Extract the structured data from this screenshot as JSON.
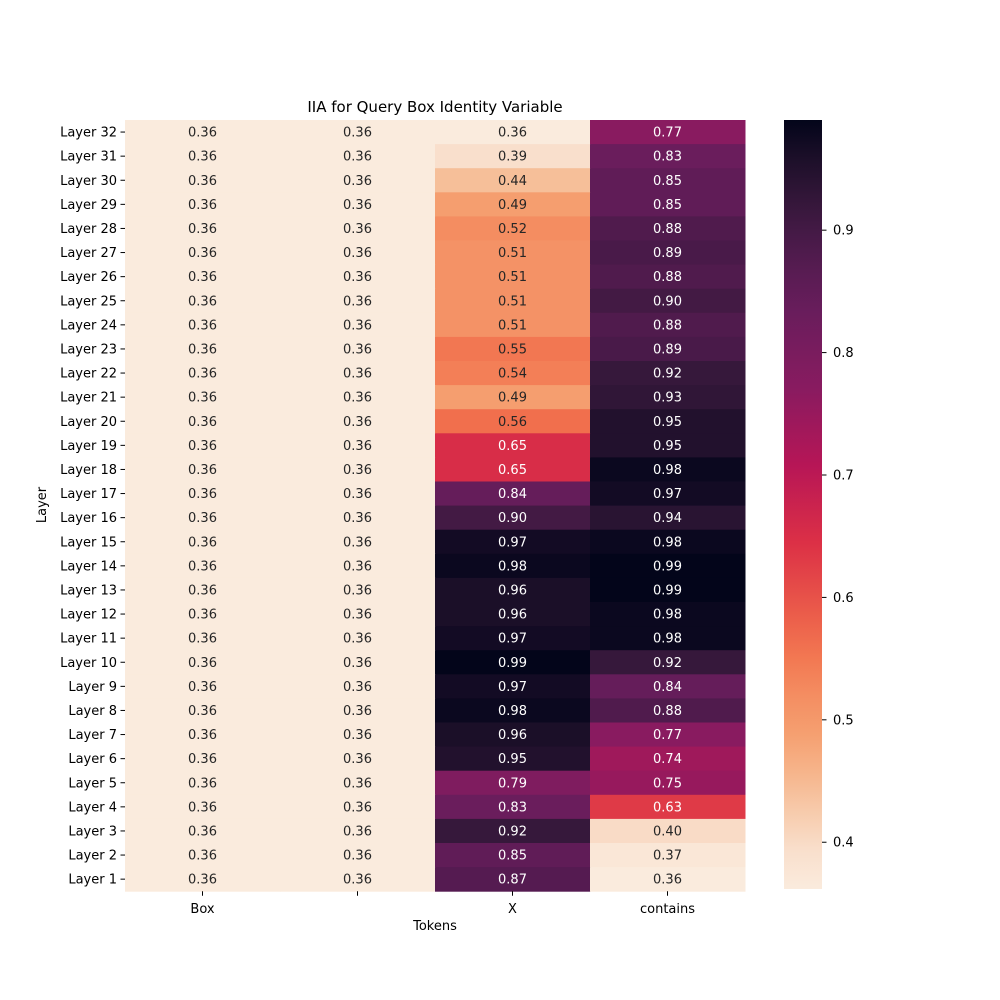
{
  "chart_data": {
    "type": "heatmap",
    "title": "IIA for Query Box Identity Variable",
    "xlabel": "Tokens",
    "ylabel": "Layer",
    "x_categories": [
      "Box",
      "",
      "X",
      "contains"
    ],
    "y_categories": [
      "Layer 32",
      "Layer 31",
      "Layer 30",
      "Layer 29",
      "Layer 28",
      "Layer 27",
      "Layer 26",
      "Layer 25",
      "Layer 24",
      "Layer 23",
      "Layer 22",
      "Layer 21",
      "Layer 20",
      "Layer 19",
      "Layer 18",
      "Layer 17",
      "Layer 16",
      "Layer 15",
      "Layer 14",
      "Layer 13",
      "Layer 12",
      "Layer 11",
      "Layer 10",
      "Layer 9",
      "Layer 8",
      "Layer 7",
      "Layer 6",
      "Layer 5",
      "Layer 4",
      "Layer 3",
      "Layer 2",
      "Layer 1"
    ],
    "values": [
      [
        0.36,
        0.36,
        0.36,
        0.77
      ],
      [
        0.36,
        0.36,
        0.39,
        0.83
      ],
      [
        0.36,
        0.36,
        0.44,
        0.85
      ],
      [
        0.36,
        0.36,
        0.49,
        0.85
      ],
      [
        0.36,
        0.36,
        0.52,
        0.88
      ],
      [
        0.36,
        0.36,
        0.51,
        0.89
      ],
      [
        0.36,
        0.36,
        0.51,
        0.88
      ],
      [
        0.36,
        0.36,
        0.51,
        0.9
      ],
      [
        0.36,
        0.36,
        0.51,
        0.88
      ],
      [
        0.36,
        0.36,
        0.55,
        0.89
      ],
      [
        0.36,
        0.36,
        0.54,
        0.92
      ],
      [
        0.36,
        0.36,
        0.49,
        0.93
      ],
      [
        0.36,
        0.36,
        0.56,
        0.95
      ],
      [
        0.36,
        0.36,
        0.65,
        0.95
      ],
      [
        0.36,
        0.36,
        0.65,
        0.98
      ],
      [
        0.36,
        0.36,
        0.84,
        0.97
      ],
      [
        0.36,
        0.36,
        0.9,
        0.94
      ],
      [
        0.36,
        0.36,
        0.97,
        0.98
      ],
      [
        0.36,
        0.36,
        0.98,
        0.99
      ],
      [
        0.36,
        0.36,
        0.96,
        0.99
      ],
      [
        0.36,
        0.36,
        0.96,
        0.98
      ],
      [
        0.36,
        0.36,
        0.97,
        0.98
      ],
      [
        0.36,
        0.36,
        0.99,
        0.92
      ],
      [
        0.36,
        0.36,
        0.97,
        0.84
      ],
      [
        0.36,
        0.36,
        0.98,
        0.88
      ],
      [
        0.36,
        0.36,
        0.96,
        0.77
      ],
      [
        0.36,
        0.36,
        0.95,
        0.74
      ],
      [
        0.36,
        0.36,
        0.79,
        0.75
      ],
      [
        0.36,
        0.36,
        0.83,
        0.63
      ],
      [
        0.36,
        0.36,
        0.92,
        0.4
      ],
      [
        0.36,
        0.36,
        0.85,
        0.37
      ],
      [
        0.36,
        0.36,
        0.87,
        0.36
      ]
    ],
    "value_range": [
      0.36,
      0.99
    ],
    "colormap": "rocket_r",
    "annotated": true,
    "annotation_format": "2 decimals",
    "colorbar": {
      "ticks": [
        0.4,
        0.5,
        0.6,
        0.7,
        0.8,
        0.9
      ],
      "tick_labels": [
        "0.4",
        "0.5",
        "0.6",
        "0.7",
        "0.8",
        "0.9"
      ]
    },
    "grid": false,
    "legend": "none"
  }
}
